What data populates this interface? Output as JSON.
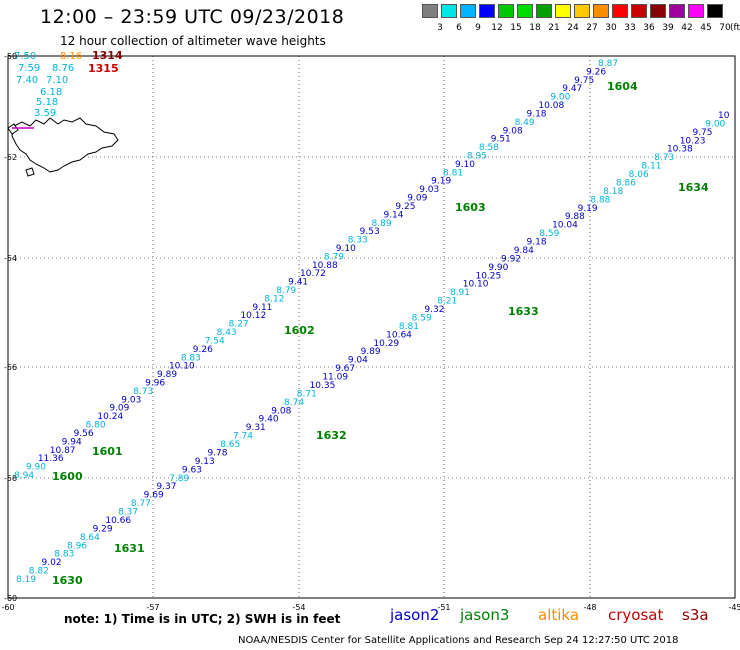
{
  "title": "12:00 – 23:59 UTC 09/23/2018",
  "subtitle": "12 hour collection of altimeter wave heights",
  "scale": {
    "unit": "(ft)",
    "bins": [
      {
        "label": "3",
        "color": "#7f7f7f"
      },
      {
        "label": "6",
        "color": "#00e6e6"
      },
      {
        "label": "9",
        "color": "#00b4ff"
      },
      {
        "label": "12",
        "color": "#0000ff"
      },
      {
        "label": "15",
        "color": "#00c800"
      },
      {
        "label": "18",
        "color": "#00dc00"
      },
      {
        "label": "21",
        "color": "#00a000"
      },
      {
        "label": "24",
        "color": "#ffff00"
      },
      {
        "label": "27",
        "color": "#ffc800"
      },
      {
        "label": "30",
        "color": "#ff8c00"
      },
      {
        "label": "33",
        "color": "#ff0000"
      },
      {
        "label": "36",
        "color": "#c80000"
      },
      {
        "label": "39",
        "color": "#8b0000"
      },
      {
        "label": "42",
        "color": "#a000a0"
      },
      {
        "label": "45",
        "color": "#ff00ff"
      },
      {
        "label": "70",
        "color": "#000000"
      }
    ]
  },
  "axes": {
    "lat_labels": [
      "-50",
      "-52",
      "-54",
      "-56",
      "-58",
      "-60"
    ],
    "lon_labels": [
      "-60",
      "-57",
      "-54",
      "-51",
      "-48",
      "-45"
    ]
  },
  "tracks": [
    {
      "pass": "1600",
      "pass_color": "#008000",
      "values": [
        {
          "v": "8.94",
          "c": "#00b4d8"
        },
        {
          "v": "9.90",
          "c": "#00b4d8"
        },
        {
          "v": "11.36",
          "c": "#0000cc"
        },
        {
          "v": "10.87",
          "c": "#0000cc"
        },
        {
          "v": "9.94",
          "c": "#0000cc"
        },
        {
          "v": "9.56",
          "c": "#0000cc"
        },
        {
          "v": "8.80",
          "c": "#00b4d8"
        },
        {
          "v": "10.24",
          "c": "#0000cc"
        },
        {
          "v": "9.09",
          "c": "#0000cc"
        },
        {
          "v": "9.03",
          "c": "#0000cc"
        },
        {
          "v": "8.73",
          "c": "#00b4d8"
        },
        {
          "v": "9.96",
          "c": "#0000cc"
        },
        {
          "v": "9.89",
          "c": "#0000cc"
        },
        {
          "v": "10.10",
          "c": "#0000cc"
        },
        {
          "v": "8.83",
          "c": "#00b4d8"
        },
        {
          "v": "9.26",
          "c": "#0000cc"
        },
        {
          "v": "7.54",
          "c": "#00b4d8"
        },
        {
          "v": "8.43",
          "c": "#00b4d8"
        },
        {
          "v": "8.27",
          "c": "#00b4d8"
        },
        {
          "v": "10.12",
          "c": "#0000cc"
        },
        {
          "v": "9.11",
          "c": "#0000cc"
        },
        {
          "v": "8.12",
          "c": "#00b4d8"
        },
        {
          "v": "8.79",
          "c": "#00b4d8"
        },
        {
          "v": "9.41",
          "c": "#0000cc"
        },
        {
          "v": "10.72",
          "c": "#0000cc"
        },
        {
          "v": "10.88",
          "c": "#0000cc"
        },
        {
          "v": "8.79",
          "c": "#00b4d8"
        },
        {
          "v": "9.10",
          "c": "#0000cc"
        },
        {
          "v": "8.33",
          "c": "#00b4d8"
        },
        {
          "v": "9.53",
          "c": "#0000cc"
        },
        {
          "v": "8.89",
          "c": "#00b4d8"
        },
        {
          "v": "9.14",
          "c": "#0000cc"
        },
        {
          "v": "9.25",
          "c": "#0000cc"
        },
        {
          "v": "9.09",
          "c": "#0000cc"
        },
        {
          "v": "9.03",
          "c": "#0000cc"
        },
        {
          "v": "9.19",
          "c": "#0000cc"
        },
        {
          "v": "8.81",
          "c": "#00b4d8"
        },
        {
          "v": "9.10",
          "c": "#0000cc"
        },
        {
          "v": "8.95",
          "c": "#00b4d8"
        },
        {
          "v": "8.58",
          "c": "#00b4d8"
        },
        {
          "v": "9.51",
          "c": "#0000cc"
        },
        {
          "v": "9.08",
          "c": "#0000cc"
        },
        {
          "v": "8.49",
          "c": "#00b4d8"
        },
        {
          "v": "9.18",
          "c": "#0000cc"
        },
        {
          "v": "10.08",
          "c": "#0000cc"
        },
        {
          "v": "9.00",
          "c": "#00b4d8"
        },
        {
          "v": "9.47",
          "c": "#0000cc"
        },
        {
          "v": "9.75",
          "c": "#0000cc"
        },
        {
          "v": "9.26",
          "c": "#0000cc"
        },
        {
          "v": "8.87",
          "c": "#00b4d8"
        }
      ],
      "labels": [
        {
          "text": "1600"
        },
        {
          "text": "1601"
        },
        {
          "text": "1602"
        },
        {
          "text": "1603"
        },
        {
          "text": "1604"
        }
      ]
    },
    {
      "pass": "1630",
      "pass_color": "#008000",
      "values": [
        {
          "v": "8.19",
          "c": "#00b4d8"
        },
        {
          "v": "8.82",
          "c": "#00b4d8"
        },
        {
          "v": "9.02",
          "c": "#0000cc"
        },
        {
          "v": "8.83",
          "c": "#00b4d8"
        },
        {
          "v": "8.96",
          "c": "#00b4d8"
        },
        {
          "v": "8.64",
          "c": "#00b4d8"
        },
        {
          "v": "9.29",
          "c": "#0000cc"
        },
        {
          "v": "10.66",
          "c": "#0000cc"
        },
        {
          "v": "8.37",
          "c": "#00b4d8"
        },
        {
          "v": "8.77",
          "c": "#00b4d8"
        },
        {
          "v": "9.69",
          "c": "#0000cc"
        },
        {
          "v": "9.37",
          "c": "#0000cc"
        },
        {
          "v": "7.89",
          "c": "#00b4d8"
        },
        {
          "v": "9.63",
          "c": "#0000cc"
        },
        {
          "v": "9.13",
          "c": "#0000cc"
        },
        {
          "v": "9.78",
          "c": "#0000cc"
        },
        {
          "v": "8.65",
          "c": "#00b4d8"
        },
        {
          "v": "7.74",
          "c": "#00b4d8"
        },
        {
          "v": "9.31",
          "c": "#0000cc"
        },
        {
          "v": "9.40",
          "c": "#0000cc"
        },
        {
          "v": "9.08",
          "c": "#0000cc"
        },
        {
          "v": "8.74",
          "c": "#00b4d8"
        },
        {
          "v": "8.71",
          "c": "#00b4d8"
        },
        {
          "v": "10.35",
          "c": "#0000cc"
        },
        {
          "v": "11.09",
          "c": "#0000cc"
        },
        {
          "v": "9.67",
          "c": "#0000cc"
        },
        {
          "v": "9.04",
          "c": "#0000cc"
        },
        {
          "v": "9.89",
          "c": "#0000cc"
        },
        {
          "v": "10.29",
          "c": "#0000cc"
        },
        {
          "v": "10.64",
          "c": "#0000cc"
        },
        {
          "v": "8.81",
          "c": "#00b4d8"
        },
        {
          "v": "8.59",
          "c": "#00b4d8"
        },
        {
          "v": "9.32",
          "c": "#0000cc"
        },
        {
          "v": "8.21",
          "c": "#00b4d8"
        },
        {
          "v": "8.91",
          "c": "#00b4d8"
        },
        {
          "v": "10.10",
          "c": "#0000cc"
        },
        {
          "v": "10.25",
          "c": "#0000cc"
        },
        {
          "v": "9.90",
          "c": "#0000cc"
        },
        {
          "v": "9.92",
          "c": "#0000cc"
        },
        {
          "v": "9.84",
          "c": "#0000cc"
        },
        {
          "v": "9.18",
          "c": "#0000cc"
        },
        {
          "v": "8.59",
          "c": "#00b4d8"
        },
        {
          "v": "10.04",
          "c": "#0000cc"
        },
        {
          "v": "9.88",
          "c": "#0000cc"
        },
        {
          "v": "9.19",
          "c": "#0000cc"
        },
        {
          "v": "8.88",
          "c": "#00b4d8"
        },
        {
          "v": "8.18",
          "c": "#00b4d8"
        },
        {
          "v": "8.86",
          "c": "#00b4d8"
        },
        {
          "v": "8.06",
          "c": "#00b4d8"
        },
        {
          "v": "8.11",
          "c": "#00b4d8"
        },
        {
          "v": "8.73",
          "c": "#00b4d8"
        },
        {
          "v": "10.38",
          "c": "#0000cc"
        },
        {
          "v": "10.23",
          "c": "#0000cc"
        },
        {
          "v": "9.75",
          "c": "#0000cc"
        },
        {
          "v": "9.00",
          "c": "#00b4d8"
        },
        {
          "v": "10",
          "c": "#0000cc"
        }
      ],
      "labels": [
        {
          "text": "1630"
        },
        {
          "text": "1631"
        },
        {
          "text": "1632"
        },
        {
          "text": "1633"
        },
        {
          "text": "1634"
        }
      ]
    }
  ],
  "topleft_values": [
    {
      "v": "7.50",
      "c": "#00b4d8"
    },
    {
      "v": "8.16",
      "c": "#ff8c00"
    },
    {
      "v": "1314",
      "c": "#8b0000"
    },
    {
      "v": "1315",
      "c": "#c80000"
    },
    {
      "v": "7.59",
      "c": "#00b4d8"
    },
    {
      "v": "8.76",
      "c": "#00b4d8"
    },
    {
      "v": "7.40",
      "c": "#00b4d8"
    },
    {
      "v": "7.10",
      "c": "#00b4d8"
    },
    {
      "v": "6.18",
      "c": "#00b4d8"
    },
    {
      "v": "5.18",
      "c": "#00b4d8"
    },
    {
      "v": "3.59",
      "c": "#00b4d8"
    }
  ],
  "footer": {
    "note": "note:  1) Time is in UTC;  2) SWH is in feet",
    "satellites": [
      {
        "name": "jason2",
        "color": "#0000cc"
      },
      {
        "name": "jason3",
        "color": "#008000"
      },
      {
        "name": "altika",
        "color": "#ff8c00"
      },
      {
        "name": "cryosat",
        "color": "#c80000"
      },
      {
        "name": "s3a",
        "color": "#8b0000"
      }
    ],
    "credit": "NOAA/NESDIS Center for Satellite Applications and Research    Sep 24 12:27:50 UTC 2018"
  }
}
